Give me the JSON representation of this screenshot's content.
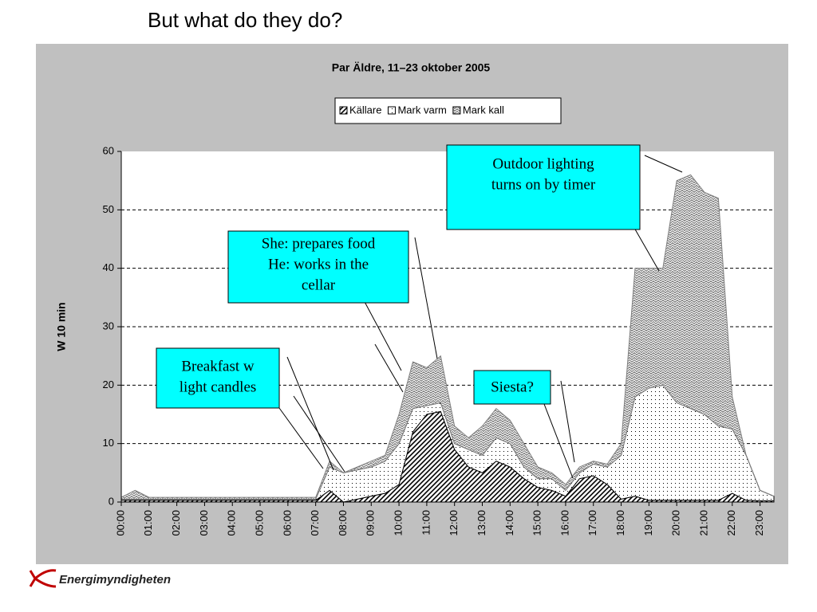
{
  "heading": "But what do they do?",
  "logo": "Energimyndigheten",
  "chart_data": {
    "type": "stacked_area",
    "title": "Par Äldre, 11–23 oktober 2005",
    "ylabel": "W 10 min",
    "x": [
      0,
      0.5,
      1,
      1.5,
      2,
      2.5,
      3,
      3.5,
      4,
      4.5,
      5,
      5.5,
      6,
      6.5,
      7,
      7.5,
      8,
      8.5,
      9,
      9.5,
      10,
      10.5,
      11,
      11.5,
      12,
      12.5,
      13,
      13.5,
      14,
      14.5,
      15,
      15.5,
      16,
      16.5,
      17,
      17.5,
      18,
      18.5,
      19,
      19.5,
      20,
      20.5,
      21,
      21.5,
      22,
      22.5,
      23,
      23.5
    ],
    "xlim": [
      0,
      23.5
    ],
    "xticks": [
      {
        "value": 0,
        "label": "00:00"
      },
      {
        "value": 1,
        "label": "01:00"
      },
      {
        "value": 2,
        "label": "02:00"
      },
      {
        "value": 3,
        "label": "03:00"
      },
      {
        "value": 4,
        "label": "04:00"
      },
      {
        "value": 5,
        "label": "05:00"
      },
      {
        "value": 6,
        "label": "06:00"
      },
      {
        "value": 7,
        "label": "07:00"
      },
      {
        "value": 8,
        "label": "08:00"
      },
      {
        "value": 9,
        "label": "09:00"
      },
      {
        "value": 10,
        "label": "10:00"
      },
      {
        "value": 11,
        "label": "11:00"
      },
      {
        "value": 12,
        "label": "12:00"
      },
      {
        "value": 13,
        "label": "13:00"
      },
      {
        "value": 14,
        "label": "14:00"
      },
      {
        "value": 15,
        "label": "15:00"
      },
      {
        "value": 16,
        "label": "16:00"
      },
      {
        "value": 17,
        "label": "17:00"
      },
      {
        "value": 18,
        "label": "18:00"
      },
      {
        "value": 19,
        "label": "19:00"
      },
      {
        "value": 20,
        "label": "20:00"
      },
      {
        "value": 21,
        "label": "21:00"
      },
      {
        "value": 22,
        "label": "22:00"
      },
      {
        "value": 23,
        "label": "23:00"
      }
    ],
    "ylim": [
      0,
      60
    ],
    "yticks": [
      0,
      10,
      20,
      30,
      40,
      50,
      60
    ],
    "grid": true,
    "series": [
      {
        "name": "Källare",
        "pattern": "diagonal",
        "color": "#000000",
        "values": [
          0.3,
          0.3,
          0.3,
          0.3,
          0.3,
          0.3,
          0.3,
          0.3,
          0.3,
          0.3,
          0.3,
          0.3,
          0.3,
          0.3,
          0.3,
          2,
          0,
          0.5,
          1,
          1.5,
          3,
          12,
          15,
          15.5,
          9,
          6,
          5,
          7,
          6,
          4,
          2.5,
          2,
          1,
          4,
          4.5,
          3,
          0.5,
          1,
          0.3,
          0.3,
          0.3,
          0.3,
          0.3,
          0.3,
          1.5,
          0.3,
          0.2,
          0.2
        ]
      },
      {
        "name": "Mark varm",
        "pattern": "dots",
        "color": "#000000",
        "values": [
          0.2,
          0.2,
          0.2,
          0.2,
          0.2,
          0.2,
          0.2,
          0.2,
          0.2,
          0.2,
          0.2,
          0.2,
          0.2,
          0.2,
          0.2,
          4,
          5,
          5,
          5,
          5.5,
          7,
          4,
          1.5,
          1.5,
          1,
          3,
          3,
          4,
          4,
          2,
          1.5,
          2,
          1,
          1,
          2,
          3,
          7.5,
          17,
          19.2,
          19.7,
          16.7,
          15.7,
          14.7,
          12.7,
          11,
          7.7,
          1.8,
          0.8
        ]
      },
      {
        "name": "Mark kall",
        "pattern": "crosshatch",
        "color": "#808080",
        "values": [
          0.3,
          1.5,
          0.3,
          0.3,
          0.3,
          0.3,
          0.3,
          0.3,
          0.3,
          0.3,
          0.3,
          0.3,
          0.3,
          0.3,
          0.3,
          1,
          0,
          0.5,
          1,
          1,
          5,
          8,
          6.5,
          8,
          3,
          2,
          5,
          5,
          4,
          4,
          2,
          1,
          1,
          1,
          0.5,
          0.5,
          2,
          22,
          20.5,
          20,
          38,
          40,
          38,
          39,
          5.5,
          0,
          0,
          0
        ]
      }
    ],
    "annotations": [
      {
        "lines": [
          "Outdoor lighting",
          "turns on by timer"
        ]
      },
      {
        "lines": [
          "She: prepares food",
          "He: works in the",
          "cellar"
        ]
      },
      {
        "lines": [
          "Breakfast w",
          "light candles"
        ]
      },
      {
        "lines": [
          "Siesta?"
        ]
      }
    ]
  }
}
